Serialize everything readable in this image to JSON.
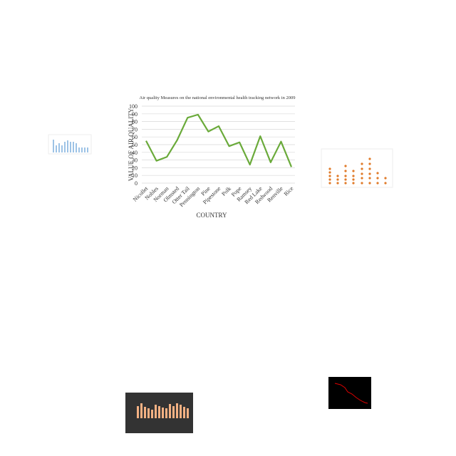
{
  "chart_data": {
    "type": "line",
    "title": "Air quality Measures on the national environmental health tracking network in 2009",
    "x_label": "COUNTRY",
    "y_label": "VALUE OF AIR QUALITY",
    "categories": [
      "Nicollet",
      "Nobles",
      "Norman",
      "Olmsted",
      "Otter Tail",
      "Pennington",
      "Pine",
      "Pipestone",
      "Polk",
      "Pope",
      "Ramsey",
      "Red Lake",
      "Redwood",
      "Renville",
      "Rice"
    ],
    "values": [
      55,
      29,
      34,
      56,
      85,
      89,
      67,
      74,
      48,
      53,
      24,
      61,
      27,
      54,
      21
    ],
    "color": "#6aaa3a",
    "ylim": [
      0,
      100
    ],
    "yticks": [
      0,
      10,
      20,
      30,
      40,
      50,
      60,
      70,
      80,
      90,
      100
    ],
    "grid": true
  }
}
